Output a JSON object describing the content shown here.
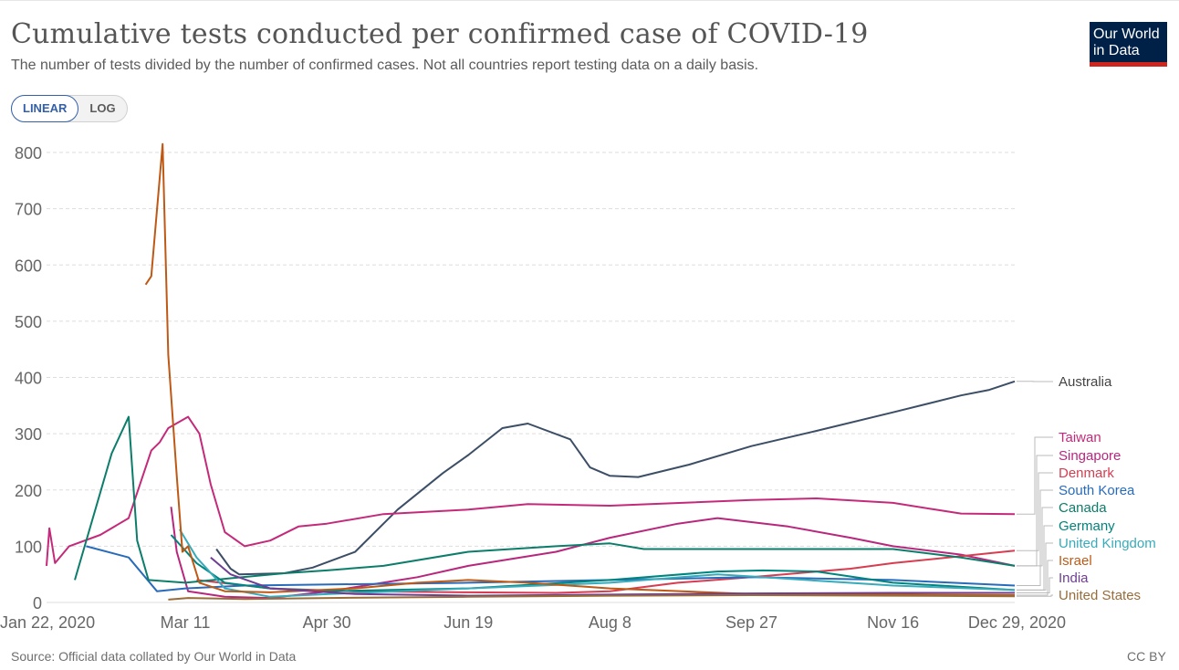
{
  "header": {
    "title": "Cumulative tests conducted per confirmed case of COVID-19",
    "subtitle": "The number of tests divided by the number of confirmed cases. Not all countries report testing data on a daily basis."
  },
  "logo": {
    "line1": "Our World",
    "line2": "in Data"
  },
  "scale_toggle": {
    "linear_label": "LINEAR",
    "log_label": "LOG",
    "selected": "LINEAR"
  },
  "footer": {
    "source": "Source: Official data collated by Our World in Data",
    "license": "CC BY"
  },
  "colors": {
    "grid": "#dddddd",
    "axis_text": "#666666",
    "logo_bg": "#002147",
    "logo_bar": "#ce261e",
    "accent": "#3360a9"
  },
  "chart_data": {
    "type": "line",
    "ylim": [
      0,
      800
    ],
    "yticks": [
      0,
      100,
      200,
      300,
      400,
      500,
      600,
      700,
      800
    ],
    "x_start": "2020-01-22",
    "x_end": "2020-12-29",
    "xticks": [
      {
        "label": "Jan 22, 2020",
        "date": "2020-01-22"
      },
      {
        "label": "Mar 11",
        "date": "2020-03-11"
      },
      {
        "label": "Apr 30",
        "date": "2020-04-30"
      },
      {
        "label": "Jun 19",
        "date": "2020-06-19"
      },
      {
        "label": "Aug 8",
        "date": "2020-08-08"
      },
      {
        "label": "Sep 27",
        "date": "2020-09-27"
      },
      {
        "label": "Nov 16",
        "date": "2020-11-16"
      },
      {
        "label": "Dec 29, 2020",
        "date": "2020-12-29"
      }
    ],
    "grid": true,
    "legend_position": "right",
    "series": [
      {
        "name": "Australia",
        "color": "#3c4e66",
        "points": [
          [
            "2020-03-22",
            95
          ],
          [
            "2020-03-27",
            60
          ],
          [
            "2020-03-30",
            50
          ],
          [
            "2020-04-15",
            52
          ],
          [
            "2020-04-25",
            62
          ],
          [
            "2020-05-10",
            90
          ],
          [
            "2020-05-25",
            165
          ],
          [
            "2020-06-10",
            230
          ],
          [
            "2020-06-19",
            262
          ],
          [
            "2020-07-01",
            310
          ],
          [
            "2020-07-10",
            318
          ],
          [
            "2020-07-25",
            290
          ],
          [
            "2020-08-01",
            240
          ],
          [
            "2020-08-08",
            225
          ],
          [
            "2020-08-18",
            223
          ],
          [
            "2020-09-05",
            245
          ],
          [
            "2020-09-27",
            278
          ],
          [
            "2020-10-20",
            305
          ],
          [
            "2020-11-16",
            338
          ],
          [
            "2020-12-10",
            368
          ],
          [
            "2020-12-20",
            378
          ],
          [
            "2020-12-29",
            393
          ]
        ]
      },
      {
        "name": "Taiwan",
        "color": "#c42a7a",
        "points": [
          [
            "2020-01-22",
            65
          ],
          [
            "2020-01-23",
            132
          ],
          [
            "2020-01-25",
            70
          ],
          [
            "2020-01-30",
            100
          ],
          [
            "2020-02-10",
            120
          ],
          [
            "2020-02-20",
            150
          ],
          [
            "2020-02-28",
            270
          ],
          [
            "2020-03-02",
            285
          ],
          [
            "2020-03-05",
            310
          ],
          [
            "2020-03-12",
            330
          ],
          [
            "2020-03-16",
            300
          ],
          [
            "2020-03-20",
            210
          ],
          [
            "2020-03-25",
            125
          ],
          [
            "2020-04-01",
            100
          ],
          [
            "2020-04-10",
            110
          ],
          [
            "2020-04-20",
            135
          ],
          [
            "2020-04-30",
            140
          ],
          [
            "2020-05-20",
            157
          ],
          [
            "2020-06-19",
            165
          ],
          [
            "2020-07-10",
            175
          ],
          [
            "2020-08-08",
            172
          ],
          [
            "2020-09-27",
            182
          ],
          [
            "2020-10-20",
            185
          ],
          [
            "2020-11-16",
            177
          ],
          [
            "2020-12-01",
            165
          ],
          [
            "2020-12-10",
            158
          ],
          [
            "2020-12-29",
            157
          ]
        ]
      },
      {
        "name": "Singapore",
        "color": "#b8277d",
        "points": [
          [
            "2020-03-06",
            170
          ],
          [
            "2020-03-08",
            90
          ],
          [
            "2020-03-12",
            20
          ],
          [
            "2020-03-25",
            10
          ],
          [
            "2020-04-10",
            8
          ],
          [
            "2020-05-01",
            20
          ],
          [
            "2020-06-01",
            45
          ],
          [
            "2020-06-19",
            65
          ],
          [
            "2020-07-20",
            90
          ],
          [
            "2020-08-08",
            115
          ],
          [
            "2020-09-01",
            140
          ],
          [
            "2020-09-15",
            150
          ],
          [
            "2020-10-10",
            135
          ],
          [
            "2020-11-01",
            115
          ],
          [
            "2020-11-16",
            100
          ],
          [
            "2020-12-10",
            85
          ],
          [
            "2020-12-29",
            65
          ]
        ]
      },
      {
        "name": "Denmark",
        "color": "#d73c50",
        "points": [
          [
            "2020-03-15",
            40
          ],
          [
            "2020-04-10",
            25
          ],
          [
            "2020-05-10",
            20
          ],
          [
            "2020-06-19",
            18
          ],
          [
            "2020-07-20",
            17
          ],
          [
            "2020-08-08",
            20
          ],
          [
            "2020-09-01",
            35
          ],
          [
            "2020-09-27",
            45
          ],
          [
            "2020-11-01",
            60
          ],
          [
            "2020-11-16",
            70
          ],
          [
            "2020-12-29",
            92
          ]
        ]
      },
      {
        "name": "South Korea",
        "color": "#286bbb",
        "points": [
          [
            "2020-02-05",
            100
          ],
          [
            "2020-02-20",
            80
          ],
          [
            "2020-03-01",
            20
          ],
          [
            "2020-03-11",
            25
          ],
          [
            "2020-04-01",
            30
          ],
          [
            "2020-06-19",
            35
          ],
          [
            "2020-08-08",
            40
          ],
          [
            "2020-09-27",
            45
          ],
          [
            "2020-11-16",
            40
          ],
          [
            "2020-12-29",
            30
          ]
        ]
      },
      {
        "name": "Canada",
        "color": "#0b7d6a",
        "points": [
          [
            "2020-02-01",
            40
          ],
          [
            "2020-02-14",
            265
          ],
          [
            "2020-02-20",
            330
          ],
          [
            "2020-02-23",
            110
          ],
          [
            "2020-02-27",
            40
          ],
          [
            "2020-03-11",
            35
          ],
          [
            "2020-03-25",
            42
          ],
          [
            "2020-04-15",
            52
          ],
          [
            "2020-04-30",
            57
          ],
          [
            "2020-05-20",
            65
          ],
          [
            "2020-06-19",
            90
          ],
          [
            "2020-07-20",
            100
          ],
          [
            "2020-08-08",
            105
          ],
          [
            "2020-08-20",
            95
          ],
          [
            "2020-09-27",
            95
          ],
          [
            "2020-11-16",
            95
          ],
          [
            "2020-12-10",
            80
          ],
          [
            "2020-12-29",
            65
          ]
        ]
      },
      {
        "name": "Germany",
        "color": "#00847e",
        "points": [
          [
            "2020-03-06",
            120
          ],
          [
            "2020-03-15",
            70
          ],
          [
            "2020-03-25",
            35
          ],
          [
            "2020-04-10",
            25
          ],
          [
            "2020-05-01",
            20
          ],
          [
            "2020-06-19",
            25
          ],
          [
            "2020-08-08",
            40
          ],
          [
            "2020-09-15",
            55
          ],
          [
            "2020-10-01",
            57
          ],
          [
            "2020-10-20",
            55
          ],
          [
            "2020-11-16",
            35
          ],
          [
            "2020-12-29",
            22
          ]
        ]
      },
      {
        "name": "United Kingdom",
        "color": "#38aaba",
        "points": [
          [
            "2020-03-09",
            130
          ],
          [
            "2020-03-15",
            80
          ],
          [
            "2020-03-25",
            25
          ],
          [
            "2020-04-10",
            10
          ],
          [
            "2020-05-01",
            15
          ],
          [
            "2020-06-19",
            25
          ],
          [
            "2020-08-08",
            35
          ],
          [
            "2020-09-15",
            50
          ],
          [
            "2020-10-01",
            45
          ],
          [
            "2020-11-16",
            30
          ],
          [
            "2020-12-29",
            22
          ]
        ]
      },
      {
        "name": "Israel",
        "color": "#be5915",
        "points": [
          [
            "2020-02-26",
            565
          ],
          [
            "2020-02-28",
            580
          ],
          [
            "2020-03-03",
            815
          ],
          [
            "2020-03-05",
            440
          ],
          [
            "2020-03-08",
            225
          ],
          [
            "2020-03-10",
            90
          ],
          [
            "2020-03-12",
            100
          ],
          [
            "2020-03-16",
            35
          ],
          [
            "2020-03-25",
            20
          ],
          [
            "2020-04-10",
            18
          ],
          [
            "2020-05-10",
            25
          ],
          [
            "2020-06-01",
            35
          ],
          [
            "2020-06-19",
            40
          ],
          [
            "2020-07-10",
            35
          ],
          [
            "2020-08-08",
            25
          ],
          [
            "2020-09-27",
            15
          ],
          [
            "2020-11-16",
            14
          ],
          [
            "2020-12-29",
            13
          ]
        ]
      },
      {
        "name": "India",
        "color": "#6d3e91",
        "points": [
          [
            "2020-03-20",
            80
          ],
          [
            "2020-03-27",
            50
          ],
          [
            "2020-04-10",
            25
          ],
          [
            "2020-05-10",
            15
          ],
          [
            "2020-06-19",
            12
          ],
          [
            "2020-08-08",
            14
          ],
          [
            "2020-09-27",
            16
          ],
          [
            "2020-11-16",
            17
          ],
          [
            "2020-12-29",
            17
          ]
        ]
      },
      {
        "name": "United States",
        "color": "#996d39",
        "points": [
          [
            "2020-03-05",
            5
          ],
          [
            "2020-03-12",
            8
          ],
          [
            "2020-04-01",
            6
          ],
          [
            "2020-05-01",
            8
          ],
          [
            "2020-06-19",
            10
          ],
          [
            "2020-08-08",
            12
          ],
          [
            "2020-09-27",
            13
          ],
          [
            "2020-11-16",
            12
          ],
          [
            "2020-12-29",
            11
          ]
        ]
      }
    ]
  }
}
